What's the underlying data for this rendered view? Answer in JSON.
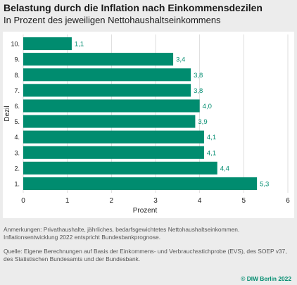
{
  "title": "Belastung durch die Inflation nach Einkommensdezilen",
  "subtitle": "In Prozent des jeweiligen Nettohaushaltseinkommens",
  "chart_data": {
    "type": "bar",
    "orientation": "horizontal",
    "categories": [
      "10.",
      "9.",
      "8.",
      "7.",
      "6.",
      "5.",
      "4.",
      "3.",
      "2.",
      "1."
    ],
    "values": [
      1.1,
      3.4,
      3.8,
      3.8,
      4.0,
      3.9,
      4.1,
      4.1,
      4.4,
      5.3
    ],
    "value_labels": [
      "1,1",
      "3,4",
      "3,8",
      "3,8",
      "4,0",
      "3,9",
      "4,1",
      "4,1",
      "4,4",
      "5,3"
    ],
    "xlabel": "Prozent",
    "ylabel": "Dezil",
    "xlim": [
      0,
      6
    ],
    "x_ticks": [
      0,
      1,
      2,
      3,
      4,
      5,
      6
    ],
    "grid": true,
    "bar_color": "#008c6f",
    "label_color": "#008c6f"
  },
  "notes": {
    "anmerkungen": "Anmerkungen: Privathaushalte, jährliches, bedarfsgewichtetes Nettohaushaltseinkommen. Inflationsentwicklung 2022 entspricht Bundesbankprognose.",
    "quelle": "Quelle: Eigene Berechnungen auf Basis der Einkommens- und Verbrauchsstichprobe (EVS), des SOEP v37, des Statistischen Bundesamts und der Bundesbank."
  },
  "copyright": "© DIW Berlin 2022"
}
